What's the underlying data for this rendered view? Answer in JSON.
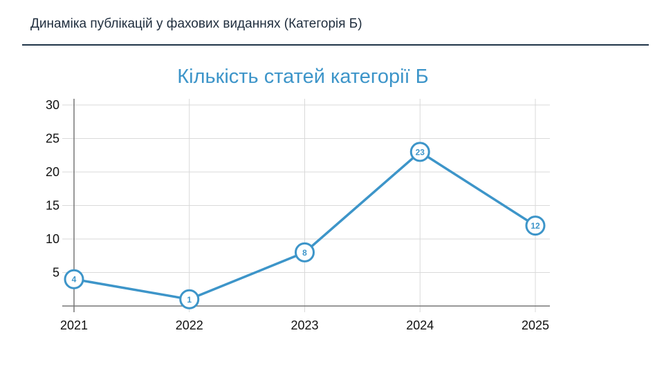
{
  "slide": {
    "title": "Динаміка публікацій у фахових виданнях (Категорія Б)"
  },
  "chart_data": {
    "type": "line",
    "title": "Кількість статей категорії Б",
    "xlabel": "",
    "ylabel": "",
    "categories": [
      "2021",
      "2022",
      "2023",
      "2024",
      "2025"
    ],
    "series": [
      {
        "values": [
          4,
          1,
          8,
          23,
          12
        ],
        "color": "#3d95c9"
      }
    ],
    "ylim": [
      0,
      30
    ],
    "yticks": [
      "5",
      "10",
      "15",
      "20",
      "25",
      "30"
    ],
    "data_labels": [
      "4",
      "1",
      "8",
      "23",
      "12"
    ],
    "grid": true,
    "legend": "none"
  }
}
